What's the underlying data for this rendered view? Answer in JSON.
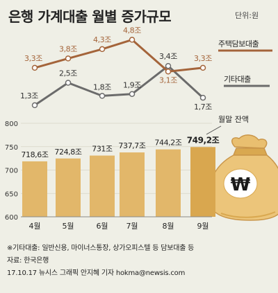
{
  "header": {
    "title": "은행 가계대출 월별 증가규모",
    "unit": "단위:원"
  },
  "colors": {
    "mortgage_line": "#a4643a",
    "other_line": "#6b6b6b",
    "bars": "#e2b76a",
    "bar_last": "#d9a74f",
    "bag": "#ecc57a",
    "background": "#efefe6"
  },
  "chart_data": [
    {
      "type": "line",
      "categories": [
        "4월",
        "5월",
        "6월",
        "7월",
        "8월",
        "9월"
      ],
      "series": [
        {
          "name": "주택담보대출",
          "values": [
            3.3,
            3.8,
            4.3,
            4.8,
            3.1,
            3.3
          ],
          "labels": [
            "3,3조",
            "3,8조",
            "4,3조",
            "4,8조",
            "3,1조",
            "3,3조"
          ]
        },
        {
          "name": "기타대출",
          "values": [
            1.3,
            2.5,
            1.8,
            1.9,
            3.4,
            1.7
          ],
          "labels": [
            "1,3조",
            "2,5조",
            "1,8조",
            "1,9조",
            "3,4조",
            "1,7조"
          ]
        }
      ]
    },
    {
      "type": "bar",
      "name": "월말 잔액",
      "categories": [
        "4월",
        "5월",
        "6월",
        "7월",
        "8월",
        "9월"
      ],
      "values": [
        718.6,
        724.8,
        731,
        737.7,
        744.2,
        749.2
      ],
      "labels": [
        "718,6조",
        "724,8조",
        "731조",
        "737,7조",
        "744,2조",
        "749,2조"
      ],
      "ylim": [
        600,
        800
      ],
      "yticks": [
        800,
        750,
        700,
        650,
        600
      ]
    }
  ],
  "footer": {
    "note": "※기타대출: 일반신용, 마이너스통장, 상가오피스텔 등 담보대출 등",
    "source": "자료: 한국은행",
    "credit": "17.10.17 뉴시스 그래픽 안지혜 기자 hokma@newsis.com"
  }
}
